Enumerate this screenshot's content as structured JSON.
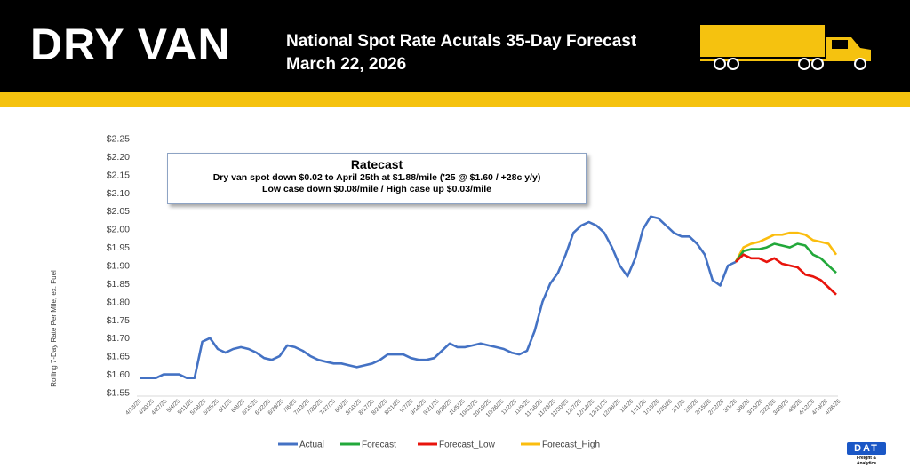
{
  "header": {
    "brand": "DRY VAN",
    "title": "National Spot Rate Acutals 35-Day Forecast",
    "date": "March 22, 2026"
  },
  "ratecast": {
    "title": "Ratecast",
    "line1": "Dry van spot down $0.02 to April 25th at $1.88/mile ('25 @ $1.60 / +28c y/y)",
    "line2": "Low case down $0.08/mile / High case up $0.03/mile"
  },
  "logo": {
    "text": "DAT",
    "sub": "Freight & Analytics"
  },
  "colors": {
    "header_bg": "#000000",
    "accent": "#f5c20f",
    "actual": "#4472c4",
    "forecast": "#22a83a",
    "forecast_low": "#e8140c",
    "forecast_high": "#fbbd0e"
  },
  "icons": [
    "truck-icon"
  ],
  "chart_data": {
    "type": "line",
    "ylabel": "Rolling 7-Day Rate Per Mile, ex. Fuel",
    "ylim": [
      1.55,
      2.25
    ],
    "yticks": [
      "$1.55",
      "$1.60",
      "$1.65",
      "$1.70",
      "$1.75",
      "$1.80",
      "$1.85",
      "$1.90",
      "$1.95",
      "$2.00",
      "$2.05",
      "$2.10",
      "$2.15",
      "$2.20",
      "$2.25"
    ],
    "xlabels": [
      "4/13/25",
      "4/20/25",
      "4/27/25",
      "5/4/25",
      "5/11/25",
      "5/18/25",
      "5/25/25",
      "6/1/25",
      "6/8/25",
      "6/15/25",
      "6/22/25",
      "6/29/25",
      "7/6/25",
      "7/13/25",
      "7/20/25",
      "7/27/25",
      "8/3/25",
      "8/10/25",
      "8/17/25",
      "8/24/25",
      "8/31/25",
      "9/7/25",
      "9/14/25",
      "9/21/25",
      "9/28/25",
      "10/5/25",
      "10/12/25",
      "10/19/25",
      "10/26/25",
      "11/2/25",
      "11/9/25",
      "11/16/25",
      "11/23/25",
      "11/30/25",
      "12/7/25",
      "12/14/25",
      "12/21/25",
      "12/28/25",
      "1/4/26",
      "1/11/26",
      "1/18/26",
      "1/25/26",
      "2/1/26",
      "2/8/26",
      "2/15/26",
      "2/22/26",
      "3/1/26",
      "3/8/26",
      "3/15/26",
      "3/22/26",
      "3/29/26",
      "4/5/26",
      "4/12/26",
      "4/19/26",
      "4/26/26"
    ],
    "legend": [
      "Actual",
      "Forecast",
      "Forecast_Low",
      "Forecast_High"
    ],
    "legend_position": "bottom",
    "grid": false,
    "series": [
      {
        "name": "Actual",
        "start": 0,
        "values": [
          1.59,
          1.59,
          1.59,
          1.6,
          1.6,
          1.6,
          1.59,
          1.59,
          1.69,
          1.7,
          1.67,
          1.66,
          1.67,
          1.675,
          1.67,
          1.66,
          1.645,
          1.64,
          1.65,
          1.68,
          1.675,
          1.665,
          1.65,
          1.64,
          1.635,
          1.63,
          1.63,
          1.625,
          1.62,
          1.625,
          1.63,
          1.64,
          1.655,
          1.655,
          1.655,
          1.645,
          1.64,
          1.64,
          1.645,
          1.665,
          1.685,
          1.675,
          1.675,
          1.68,
          1.685,
          1.68,
          1.675,
          1.67,
          1.66,
          1.655,
          1.665,
          1.72,
          1.8,
          1.85,
          1.88,
          1.93,
          1.99,
          2.01,
          2.02,
          2.01,
          1.99,
          1.95,
          1.9,
          1.87,
          1.92,
          2.0,
          2.035,
          2.03,
          2.01,
          1.99,
          1.98,
          1.98,
          1.96,
          1.93,
          1.86,
          1.845,
          1.9,
          1.91
        ]
      },
      {
        "name": "Forecast",
        "start": 77,
        "values": [
          1.91,
          1.94,
          1.945,
          1.945,
          1.95,
          1.96,
          1.955,
          1.95,
          1.96,
          1.955,
          1.93,
          1.92,
          1.9,
          1.88
        ]
      },
      {
        "name": "Forecast_Low",
        "start": 77,
        "values": [
          1.91,
          1.93,
          1.92,
          1.92,
          1.91,
          1.92,
          1.905,
          1.9,
          1.895,
          1.875,
          1.87,
          1.86,
          1.84,
          1.82
        ]
      },
      {
        "name": "Forecast_High",
        "start": 77,
        "values": [
          1.91,
          1.95,
          1.96,
          1.965,
          1.975,
          1.985,
          1.985,
          1.99,
          1.99,
          1.985,
          1.97,
          1.965,
          1.96,
          1.93
        ]
      }
    ]
  }
}
